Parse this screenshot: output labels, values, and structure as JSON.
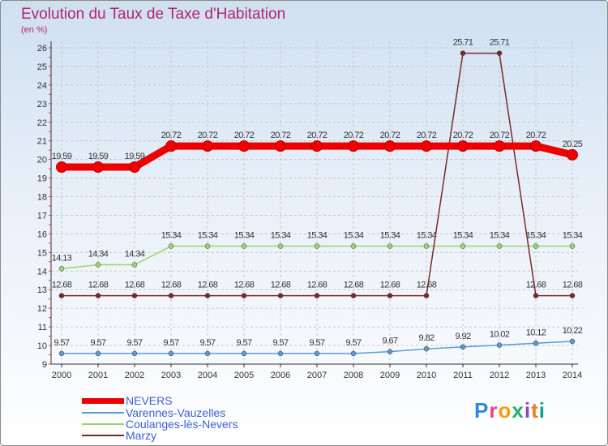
{
  "title": "Evolution du Taux de Taxe d'Habitation",
  "unit": "(en %)",
  "brand": "Proxiti",
  "chart_data": {
    "type": "line",
    "title": "Evolution du Taux de Taxe d'Habitation",
    "ylabel": "(en %)",
    "xlabel": "",
    "ylim": [
      9,
      26
    ],
    "yticks": [
      9,
      10,
      11,
      12,
      13,
      14,
      15,
      16,
      17,
      18,
      19,
      20,
      21,
      22,
      23,
      24,
      25,
      26
    ],
    "x": [
      "2000",
      "2001",
      "2002",
      "2003",
      "2004",
      "2005",
      "2006",
      "2007",
      "2008",
      "2009",
      "2010",
      "2011",
      "2012",
      "2013",
      "2014"
    ],
    "series": [
      {
        "name": "NEVERS",
        "color": "#ee0000",
        "values": [
          19.59,
          19.59,
          19.59,
          20.72,
          20.72,
          20.72,
          20.72,
          20.72,
          20.72,
          20.72,
          20.72,
          20.72,
          20.72,
          20.72,
          20.25
        ],
        "labels": [
          "19.59",
          "19.59",
          "19.59",
          "20.72",
          "20.72",
          "20.72",
          "20.72",
          "20.72",
          "20.72",
          "20.72",
          "20.72",
          "20.72",
          "20.72",
          "20.72",
          "20.25"
        ]
      },
      {
        "name": "Varennes-Vauzelles",
        "color": "#5b9bd5",
        "values": [
          9.57,
          9.57,
          9.57,
          9.57,
          9.57,
          9.57,
          9.57,
          9.57,
          9.57,
          9.67,
          9.82,
          9.92,
          10.02,
          10.12,
          10.22
        ],
        "labels": [
          "9.57",
          "9.57",
          "9.57",
          "9.57",
          "9.57",
          "9.57",
          "9.57",
          "9.57",
          "9.57",
          "9.67",
          "9.82",
          "9.92",
          "10.02",
          "10.12",
          "10.22"
        ]
      },
      {
        "name": "Coulanges-lès-Nevers",
        "color": "#9ad66a",
        "values": [
          14.13,
          14.34,
          14.34,
          15.34,
          15.34,
          15.34,
          15.34,
          15.34,
          15.34,
          15.34,
          15.34,
          15.34,
          15.34,
          15.34,
          15.34
        ],
        "labels": [
          "14.13",
          "14.34",
          "14.34",
          "15.34",
          "15.34",
          "15.34",
          "15.34",
          "15.34",
          "15.34",
          "15.34",
          "15.34",
          "15.34",
          "15.34",
          "15.34",
          "15.34"
        ]
      },
      {
        "name": "Marzy",
        "color": "#7a2a2a",
        "values": [
          12.68,
          12.68,
          12.68,
          12.68,
          12.68,
          12.68,
          12.68,
          12.68,
          12.68,
          12.68,
          12.68,
          25.71,
          25.71,
          12.68,
          12.68
        ],
        "labels": [
          "12.68",
          "12.68",
          "12.68",
          "12.68",
          "12.68",
          "12.68",
          "12.68",
          "12.68",
          "12.68",
          "12.68",
          "12.68",
          "25.71",
          "25.71",
          "12.68",
          "12.68"
        ]
      }
    ]
  }
}
